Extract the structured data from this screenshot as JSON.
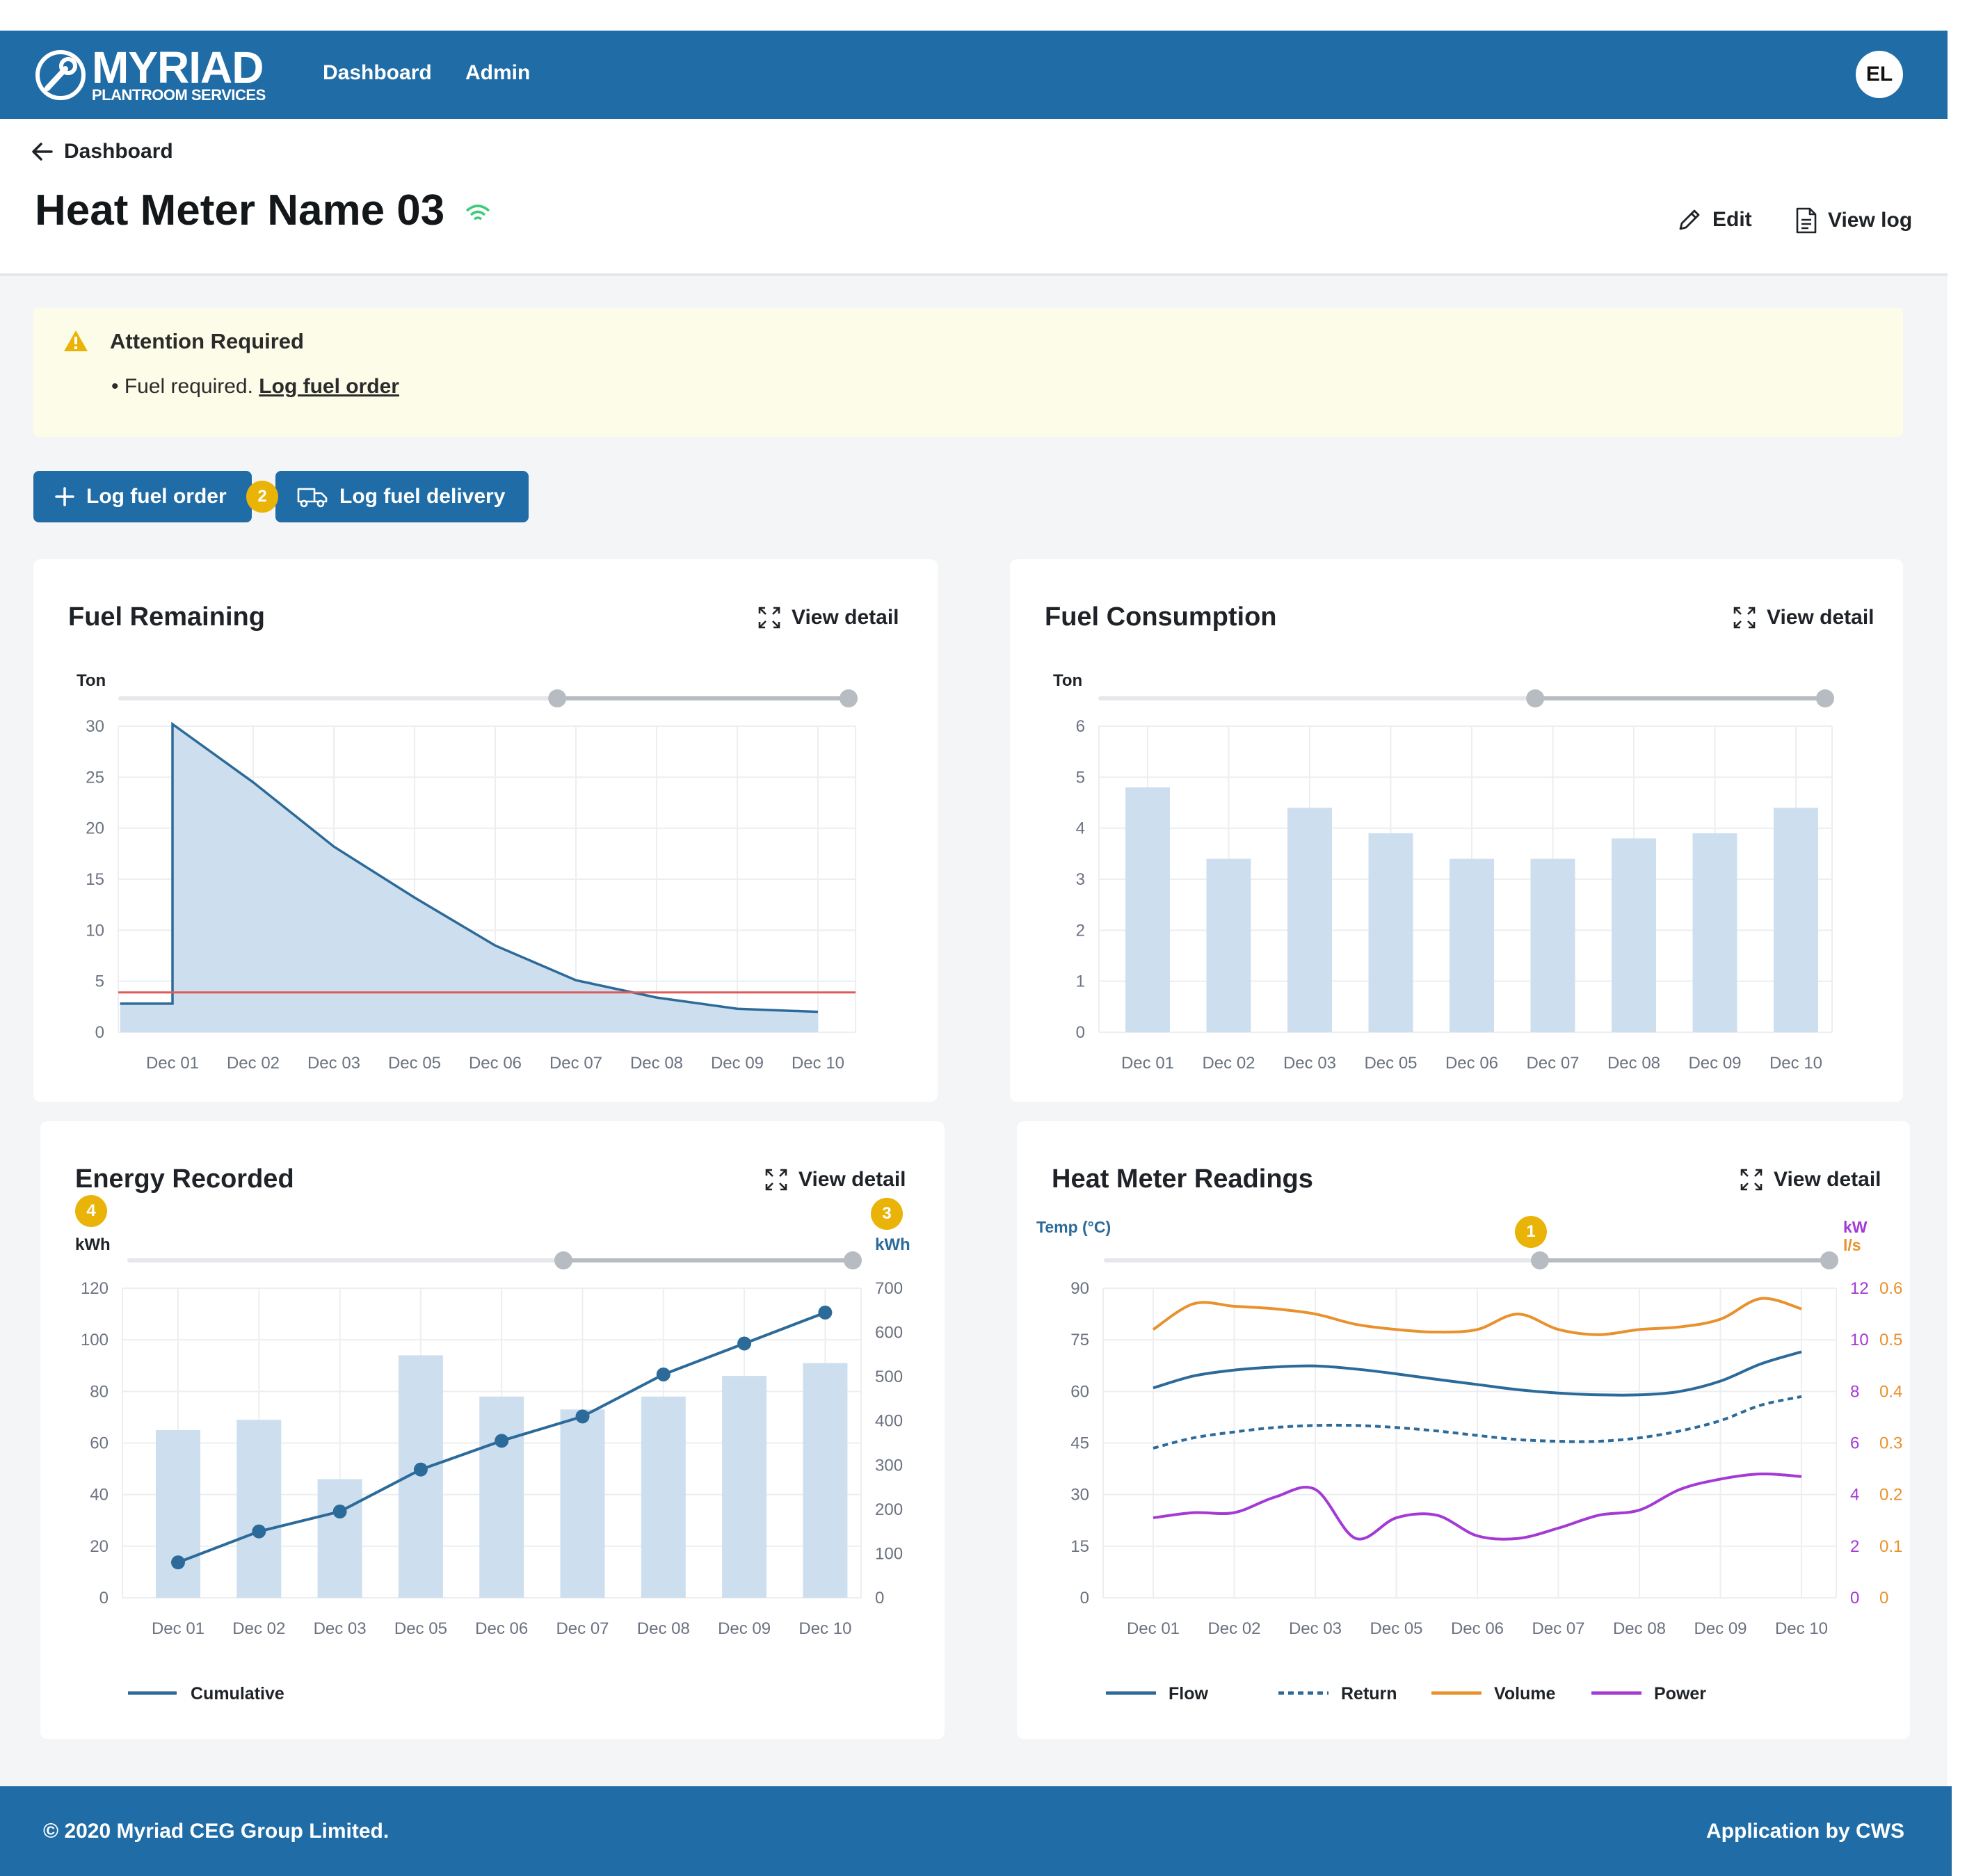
{
  "header": {
    "logo_title": "MYRIAD",
    "logo_subtitle": "PLANTROOM SERVICES",
    "nav": [
      "Dashboard",
      "Admin"
    ],
    "user_initials": "EL"
  },
  "page": {
    "back_label": "Dashboard",
    "title": "Heat Meter Name 03",
    "edit_label": "Edit",
    "view_log_label": "View log"
  },
  "alert": {
    "title": "Attention Required",
    "message": "Fuel required.",
    "link_label": "Log fuel order"
  },
  "actions": {
    "log_order_label": "Log fuel order",
    "log_delivery_label": "Log fuel delivery"
  },
  "markers": {
    "m1": "1",
    "m2": "2",
    "m3": "3",
    "m4": "4"
  },
  "colors": {
    "brand": "#1f6ca6",
    "bar_fill": "#cddfee",
    "line_blue": "#2c6a9a",
    "threshold": "#e05a5a",
    "volume": "#e8912d",
    "power": "#a43ad4",
    "marker": "#eab308",
    "wifi": "#3ecb7a"
  },
  "icons": {
    "logo": "wrench-circle-icon",
    "back": "arrow-left-icon",
    "signal": "wifi-icon",
    "edit": "pencil-icon",
    "log": "document-icon",
    "warning": "warning-icon",
    "add": "plus-icon",
    "delivery": "truck-icon",
    "expand": "expand-icon"
  },
  "cards": {
    "fuel_remaining": {
      "title": "Fuel Remaining",
      "view_detail": "View detail"
    },
    "fuel_consumption": {
      "title": "Fuel Consumption",
      "view_detail": "View detail"
    },
    "energy_recorded": {
      "title": "Energy Recorded",
      "view_detail": "View detail"
    },
    "heat_meter": {
      "title": "Heat Meter Readings",
      "view_detail": "View detail"
    }
  },
  "footer": {
    "copyright": "© 2020 Myriad CEG Group Limited.",
    "credit": "Application by CWS"
  },
  "chart_data": [
    {
      "id": "fuel_remaining",
      "type": "area",
      "title": "Fuel Remaining",
      "ylabel": "Ton",
      "ylim": [
        0,
        30
      ],
      "yticks": [
        0,
        5,
        10,
        15,
        20,
        25,
        30
      ],
      "categories": [
        "Dec 01",
        "Dec 02",
        "Dec 03",
        "Dec 05",
        "Dec 06",
        "Dec 07",
        "Dec 08",
        "Dec 09",
        "Dec 10"
      ],
      "x": [
        -0.65,
        0,
        0,
        1,
        2,
        3,
        4,
        5,
        6,
        7,
        8
      ],
      "values": [
        2.8,
        2.8,
        30.2,
        24.5,
        18.2,
        13.2,
        8.5,
        5.1,
        3.4,
        2.3,
        2.0
      ],
      "threshold": 3.9,
      "grid": true,
      "range_selector": [
        0.6,
        1.0
      ]
    },
    {
      "id": "fuel_consumption",
      "type": "bar",
      "title": "Fuel Consumption",
      "ylabel": "Ton",
      "ylim": [
        0,
        6
      ],
      "yticks": [
        0,
        1,
        2,
        3,
        4,
        5,
        6
      ],
      "categories": [
        "Dec 01",
        "Dec 02",
        "Dec 03",
        "Dec 05",
        "Dec 06",
        "Dec 07",
        "Dec 08",
        "Dec 09",
        "Dec 10"
      ],
      "values": [
        4.8,
        3.4,
        4.4,
        3.9,
        3.4,
        3.4,
        3.8,
        3.9,
        4.4
      ],
      "grid": true,
      "range_selector": [
        0.6,
        1.0
      ]
    },
    {
      "id": "energy_recorded",
      "type": "bar",
      "title": "Energy Recorded",
      "ylabel": "kWh",
      "ylabel_right": "kWh",
      "ylim": [
        0,
        120
      ],
      "yticks": [
        0,
        20,
        40,
        60,
        80,
        100,
        120
      ],
      "ylim_right": [
        0,
        700
      ],
      "yticks_right": [
        0,
        100,
        200,
        300,
        400,
        500,
        600,
        700
      ],
      "categories": [
        "Dec 01",
        "Dec 02",
        "Dec 03",
        "Dec 05",
        "Dec 06",
        "Dec 07",
        "Dec 08",
        "Dec 09",
        "Dec 10"
      ],
      "values": [
        65,
        69,
        46,
        94,
        78,
        73,
        78,
        86,
        91
      ],
      "series": [
        {
          "name": "Cumulative",
          "axis": "right",
          "values": [
            80,
            150,
            195,
            290,
            355,
            410,
            505,
            575,
            645
          ]
        }
      ],
      "legend": "bottom-left",
      "grid": true,
      "range_selector": [
        0.6,
        1.0
      ]
    },
    {
      "id": "heat_meter_readings",
      "type": "line",
      "title": "Heat Meter Readings",
      "ylabel": "Temp (°C)",
      "ylabel_right": "kW",
      "ylabel_right2": "l/s",
      "ylim": [
        0,
        90
      ],
      "yticks": [
        0,
        15,
        30,
        45,
        60,
        75,
        90
      ],
      "yticks_right": [
        0,
        2,
        4,
        6,
        8,
        10,
        12
      ],
      "yticks_right2": [
        0,
        0.1,
        0.2,
        0.3,
        0.4,
        0.5,
        0.6
      ],
      "categories": [
        "Dec 01",
        "Dec 02",
        "Dec 03",
        "Dec 05",
        "Dec 06",
        "Dec 07",
        "Dec 08",
        "Dec 09",
        "Dec 10"
      ],
      "x": [
        0,
        0.5,
        1,
        1.5,
        2,
        2.5,
        3,
        3.5,
        4,
        4.5,
        5,
        5.5,
        6,
        6.5,
        7,
        7.5,
        8
      ],
      "series": [
        {
          "name": "Flow",
          "axis": "left",
          "style": "solid",
          "values": [
            61,
            64.5,
            66.2,
            67.1,
            67.4,
            66.5,
            65.1,
            63.5,
            62,
            60.5,
            59.5,
            59,
            59,
            60,
            63,
            68,
            71.5
          ]
        },
        {
          "name": "Return",
          "axis": "left",
          "style": "dashed",
          "values": [
            43.5,
            46.5,
            48.2,
            49.5,
            50.1,
            50.1,
            49.5,
            48.5,
            47.2,
            46,
            45.5,
            45.5,
            46.5,
            48.5,
            51.5,
            56,
            58.5
          ]
        },
        {
          "name": "Volume",
          "axis": "right2",
          "style": "solid",
          "values": [
            0.52,
            0.57,
            0.565,
            0.56,
            0.55,
            0.53,
            0.52,
            0.515,
            0.52,
            0.55,
            0.52,
            0.51,
            0.52,
            0.525,
            0.54,
            0.58,
            0.56
          ]
        },
        {
          "name": "Power",
          "axis": "right",
          "style": "solid",
          "values": [
            3.1,
            3.3,
            3.3,
            3.9,
            4.2,
            2.3,
            3.1,
            3.2,
            2.4,
            2.3,
            2.7,
            3.2,
            3.4,
            4.2,
            4.6,
            4.8,
            4.7
          ]
        }
      ],
      "legend": "bottom-left",
      "grid": true,
      "range_selector": [
        0.6,
        1.0
      ]
    }
  ]
}
